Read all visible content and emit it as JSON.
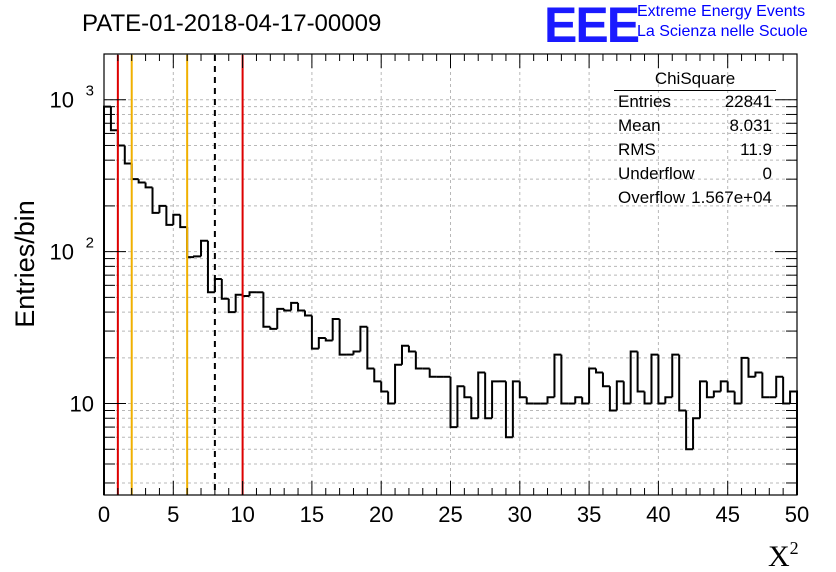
{
  "page": {
    "title": "PATE-01-2018-04-17-00009"
  },
  "logo": {
    "mark": "EEE",
    "line1": "Extreme Energy Events",
    "line2": "La Scienza nelle Scuole",
    "color": "#0000ff"
  },
  "stats": {
    "title": "ChiSquare",
    "rows": [
      {
        "key": "Entries",
        "value": "22841"
      },
      {
        "key": "Mean",
        "value": "8.031"
      },
      {
        "key": "RMS",
        "value": "11.9"
      },
      {
        "key": "Underflow",
        "value": "0"
      },
      {
        "key": "Overflow",
        "value": "1.567e+04"
      }
    ]
  },
  "chart_data": {
    "type": "histogram",
    "xlabel": "X",
    "xlabel_sup": "2",
    "ylabel": "Entries/bin",
    "xlim": [
      0,
      50
    ],
    "ylim": [
      2.5,
      2000
    ],
    "yscale": "log",
    "grid": true,
    "x_ticks": [
      0,
      5,
      10,
      15,
      20,
      25,
      30,
      35,
      40,
      45,
      50
    ],
    "y_ticks": [
      {
        "value": 10,
        "label": "10"
      },
      {
        "value": 100,
        "label": "10",
        "sup": "2"
      },
      {
        "value": 1000,
        "label": "10",
        "sup": "3"
      }
    ],
    "bin_width": 0.5,
    "values": [
      900,
      630,
      500,
      380,
      300,
      285,
      265,
      180,
      200,
      150,
      175,
      145,
      92,
      93,
      118,
      54,
      66,
      49,
      40,
      52,
      51,
      54,
      54,
      32,
      31,
      42,
      41,
      46,
      41,
      38,
      23,
      27,
      26,
      36,
      21,
      21,
      22,
      32,
      17,
      14,
      12,
      10,
      18,
      24,
      22,
      17,
      17,
      15,
      15,
      15,
      7,
      13,
      11,
      8,
      16,
      8,
      14,
      14,
      6,
      14,
      11,
      10,
      10,
      10,
      11,
      21,
      10,
      10,
      11,
      10,
      17,
      16,
      13,
      9,
      14,
      10,
      22,
      12,
      10,
      21,
      10,
      11,
      21,
      9,
      5,
      8,
      14,
      11,
      12,
      14,
      12,
      10,
      20,
      15,
      16,
      11,
      11,
      15,
      10,
      12
    ],
    "vertical_lines": [
      {
        "x": 1,
        "color": "#dd0000",
        "style": "solid"
      },
      {
        "x": 2,
        "color": "#f0b000",
        "style": "solid"
      },
      {
        "x": 6,
        "color": "#f0b000",
        "style": "solid"
      },
      {
        "x": 8,
        "color": "#000000",
        "style": "dashed"
      },
      {
        "x": 10,
        "color": "#dd0000",
        "style": "solid"
      }
    ]
  }
}
